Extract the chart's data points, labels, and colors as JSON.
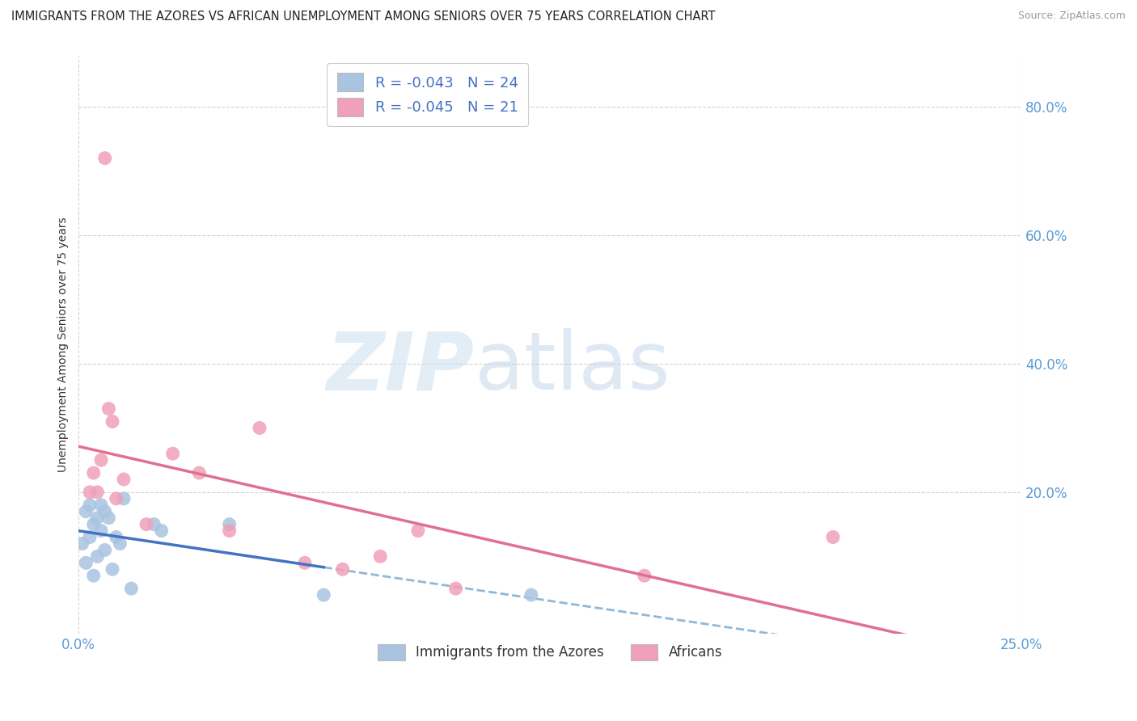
{
  "title": "IMMIGRANTS FROM THE AZORES VS AFRICAN UNEMPLOYMENT AMONG SENIORS OVER 75 YEARS CORRELATION CHART",
  "source": "Source: ZipAtlas.com",
  "ylabel": "Unemployment Among Seniors over 75 years",
  "xlim": [
    0.0,
    0.25
  ],
  "ylim": [
    -0.02,
    0.88
  ],
  "blue_R": -0.043,
  "blue_N": 24,
  "pink_R": -0.045,
  "pink_N": 21,
  "blue_color": "#a8c4e0",
  "pink_color": "#f0a0b8",
  "blue_line_color": "#4472c4",
  "pink_line_color": "#e07090",
  "blue_dashed_color": "#90b8d8",
  "blue_x": [
    0.001,
    0.002,
    0.002,
    0.003,
    0.003,
    0.004,
    0.004,
    0.005,
    0.005,
    0.006,
    0.006,
    0.007,
    0.007,
    0.008,
    0.009,
    0.01,
    0.011,
    0.012,
    0.014,
    0.02,
    0.022,
    0.04,
    0.065,
    0.12
  ],
  "blue_y": [
    0.12,
    0.09,
    0.17,
    0.13,
    0.18,
    0.07,
    0.15,
    0.1,
    0.16,
    0.14,
    0.18,
    0.11,
    0.17,
    0.16,
    0.08,
    0.13,
    0.12,
    0.19,
    0.05,
    0.15,
    0.14,
    0.15,
    0.04,
    0.04
  ],
  "pink_x": [
    0.003,
    0.004,
    0.005,
    0.006,
    0.007,
    0.008,
    0.009,
    0.01,
    0.012,
    0.018,
    0.025,
    0.032,
    0.04,
    0.048,
    0.06,
    0.07,
    0.08,
    0.09,
    0.1,
    0.15,
    0.2
  ],
  "pink_y": [
    0.2,
    0.23,
    0.2,
    0.25,
    0.72,
    0.33,
    0.31,
    0.19,
    0.22,
    0.15,
    0.26,
    0.23,
    0.14,
    0.3,
    0.09,
    0.08,
    0.1,
    0.14,
    0.05,
    0.07,
    0.13
  ],
  "blue_line_x_end": 0.065,
  "pink_line_x_start": 0.003,
  "pink_line_x_end": 0.25,
  "ytick_positions": [
    0.2,
    0.4,
    0.6,
    0.8
  ],
  "ytick_labels": [
    "20.0%",
    "40.0%",
    "60.0%",
    "80.0%"
  ],
  "xtick_positions": [
    0.0,
    0.25
  ],
  "xtick_labels": [
    "0.0%",
    "25.0%"
  ]
}
